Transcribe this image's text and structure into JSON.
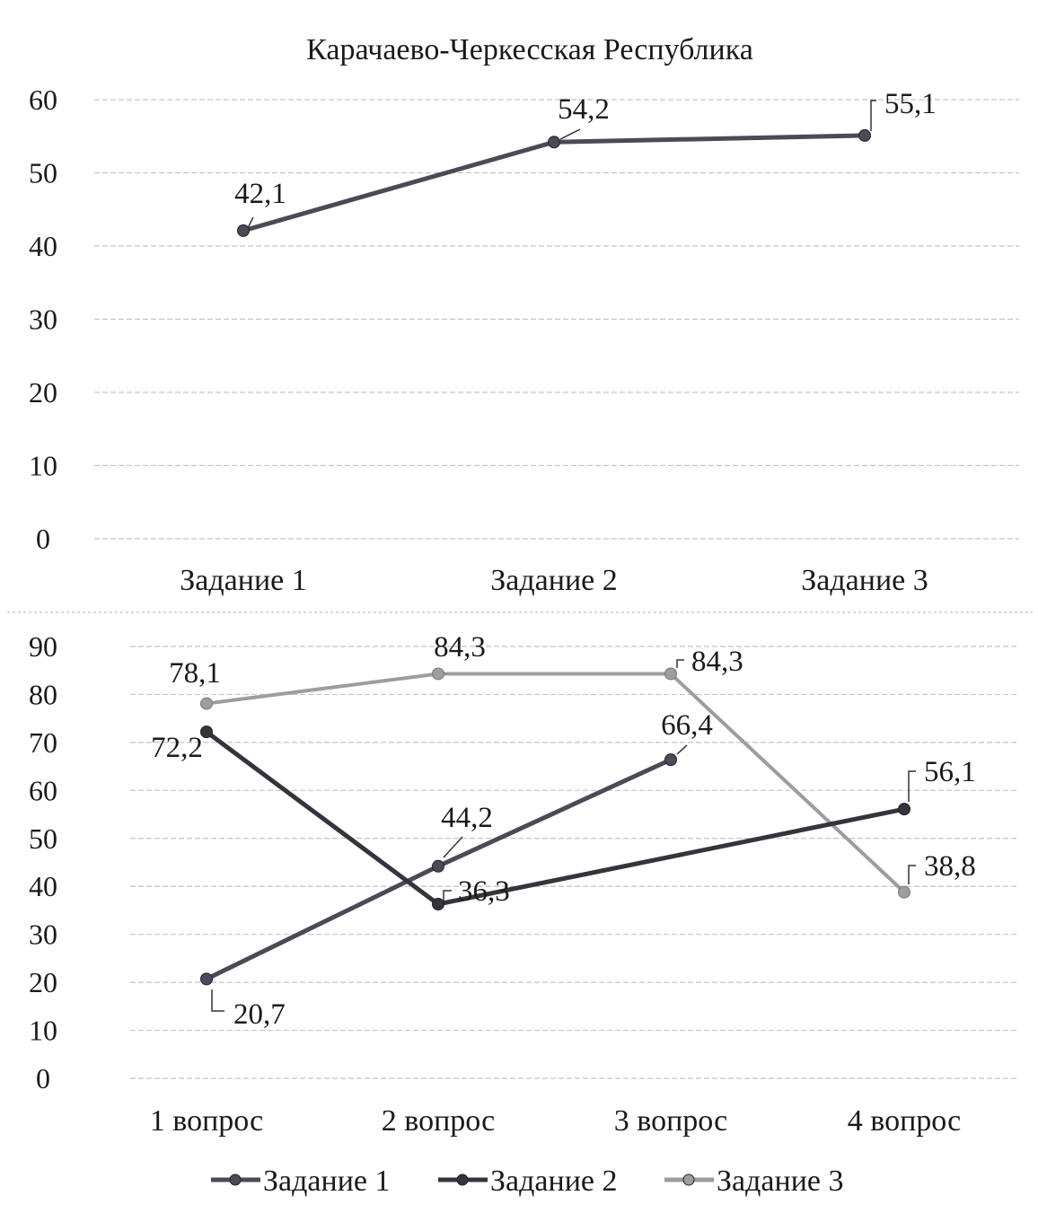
{
  "colors": {
    "series1": "#4a4a58",
    "series2": "#34343c",
    "series3": "#9d9d9d"
  },
  "chart_data": [
    {
      "type": "line",
      "title": "Карачаево-Черкесская Республика",
      "categories": [
        "Задание 1",
        "Задание 2",
        "Задание 3"
      ],
      "series": [
        {
          "values": [
            42.1,
            54.2,
            55.1
          ],
          "labels": [
            "42,1",
            "54,2",
            "55,1"
          ]
        }
      ],
      "ylim": [
        0,
        60
      ],
      "yticks": [
        0,
        10,
        20,
        30,
        40,
        50,
        60
      ],
      "grid": true
    },
    {
      "type": "line",
      "title": "",
      "categories": [
        "1 вопрос",
        "2 вопрос",
        "3 вопрос",
        "4 вопрос"
      ],
      "series": [
        {
          "name": "Задание 1",
          "values": [
            20.7,
            44.2,
            66.4,
            null
          ],
          "labels": [
            "20,7",
            "44,2",
            "66,4",
            ""
          ]
        },
        {
          "name": "Задание 2",
          "values": [
            72.2,
            36.3,
            null,
            56.1
          ],
          "labels": [
            "72,2",
            "36,3",
            "",
            "56,1"
          ]
        },
        {
          "name": "Задание 3",
          "values": [
            78.1,
            84.3,
            84.3,
            38.8
          ],
          "labels": [
            "78,1",
            "84,3",
            "84,3",
            "38,8"
          ]
        }
      ],
      "ylim": [
        0,
        90
      ],
      "yticks": [
        0,
        10,
        20,
        30,
        40,
        50,
        60,
        70,
        80,
        90
      ],
      "grid": true,
      "legend": "bottom"
    }
  ]
}
